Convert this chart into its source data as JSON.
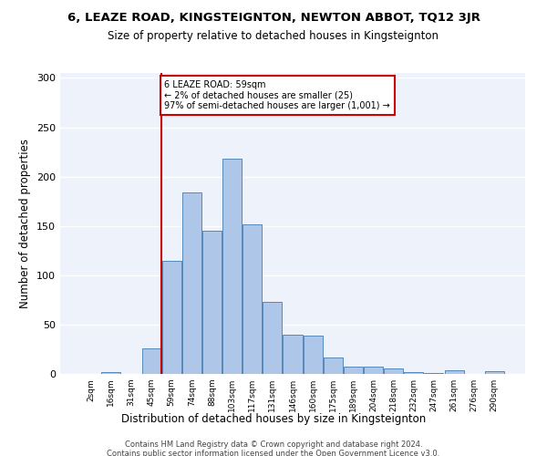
{
  "title1": "6, LEAZE ROAD, KINGSTEIGNTON, NEWTON ABBOT, TQ12 3JR",
  "title2": "Size of property relative to detached houses in Kingsteignton",
  "xlabel": "Distribution of detached houses by size in Kingsteignton",
  "ylabel": "Number of detached properties",
  "footer1": "Contains HM Land Registry data © Crown copyright and database right 2024.",
  "footer2": "Contains public sector information licensed under the Open Government Licence v3.0.",
  "annotation_line1": "6 LEAZE ROAD: 59sqm",
  "annotation_line2": "← 2% of detached houses are smaller (25)",
  "annotation_line3": "97% of semi-detached houses are larger (1,001) →",
  "bar_color": "#aec6e8",
  "bar_edge_color": "#5588bb",
  "vline_color": "#cc0000",
  "annotation_box_color": "#cc0000",
  "categories": [
    "2sqm",
    "16sqm",
    "31sqm",
    "45sqm",
    "59sqm",
    "74sqm",
    "88sqm",
    "103sqm",
    "117sqm",
    "131sqm",
    "146sqm",
    "160sqm",
    "175sqm",
    "189sqm",
    "204sqm",
    "218sqm",
    "232sqm",
    "247sqm",
    "261sqm",
    "276sqm",
    "290sqm"
  ],
  "bar_heights": [
    0,
    2,
    0,
    26,
    115,
    184,
    145,
    218,
    152,
    73,
    40,
    39,
    17,
    7,
    7,
    6,
    2,
    1,
    4,
    0,
    3
  ],
  "ylim": [
    0,
    305
  ],
  "yticks": [
    0,
    50,
    100,
    150,
    200,
    250,
    300
  ],
  "vline_x_index": 4,
  "figsize": [
    6.0,
    5.0
  ],
  "dpi": 100,
  "background_color": "#eef2fb"
}
